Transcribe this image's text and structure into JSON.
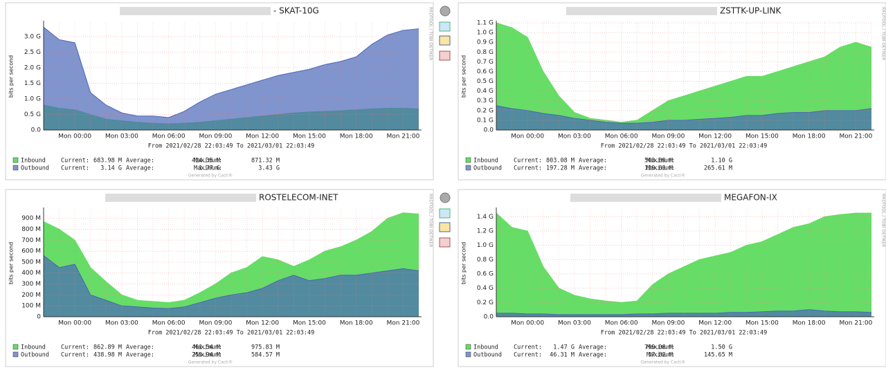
{
  "chart_data": [
    {
      "type": "area",
      "title": "- SKAT-10G",
      "ylabel": "bits per second",
      "xlabel": "From 2021/02/28 22:03:49 To 2021/03/01 22:03:49",
      "side_text": "RRDTOOL / TOBI OETIKER",
      "footer": "Generated by Cacti®",
      "grid": true,
      "categories": [
        null,
        null,
        "Mon 00:00",
        null,
        null,
        "Mon 03:00",
        null,
        null,
        "Mon 06:00",
        null,
        null,
        "Mon 09:00",
        null,
        null,
        "Mon 12:00",
        null,
        null,
        "Mon 15:00",
        null,
        null,
        "Mon 18:00",
        null,
        null,
        "Mon 21:00",
        null
      ],
      "ylim": [
        0,
        3.44
      ],
      "yticks": [
        {
          "value": 0,
          "label": "0.0"
        },
        {
          "value": 0.5,
          "label": "0.5 G"
        },
        {
          "value": 1,
          "label": "1.0 G"
        },
        {
          "value": 1.5,
          "label": "1.5 G"
        },
        {
          "value": 2,
          "label": "2.0 G"
        },
        {
          "value": 2.5,
          "label": "2.5 G"
        },
        {
          "value": 3,
          "label": "3.0 G"
        }
      ],
      "series": [
        {
          "name": "Inbound",
          "color": "#66dd66",
          "opacity": 1,
          "values": [
            0.8,
            0.7,
            0.65,
            0.5,
            0.35,
            0.3,
            0.25,
            0.22,
            0.2,
            0.22,
            0.25,
            0.3,
            0.35,
            0.4,
            0.45,
            0.5,
            0.55,
            0.58,
            0.6,
            0.62,
            0.65,
            0.68,
            0.7,
            0.7,
            0.68
          ],
          "stats": [
            {
              "label": "Current:",
              "value": "683.98 M"
            },
            {
              "label": "Average:",
              "value": "424.35 M"
            },
            {
              "label": "Maximum:",
              "value": "871.32 M"
            }
          ]
        },
        {
          "name": "Outbound",
          "color": "#4a66b8",
          "opacity": 0.7,
          "values": [
            3.3,
            2.9,
            2.8,
            1.2,
            0.8,
            0.55,
            0.45,
            0.45,
            0.4,
            0.6,
            0.9,
            1.15,
            1.3,
            1.45,
            1.6,
            1.75,
            1.85,
            1.95,
            2.1,
            2.2,
            2.35,
            2.75,
            3.05,
            3.2,
            3.25
          ],
          "stats": [
            {
              "label": "Current:",
              "value": "3.14 G"
            },
            {
              "label": "Average:",
              "value": "1.77 G"
            },
            {
              "label": "Maximum:",
              "value": "3.43 G"
            }
          ]
        }
      ]
    },
    {
      "type": "area",
      "title": "ZSTTK-UP-LINK",
      "ylabel": "bits per second",
      "xlabel": "From 2021/02/28 22:03:49 To 2021/03/01 22:03:49",
      "side_text": "RRDTOOL / TOBI OETIKER",
      "footer": "Generated by Cacti®",
      "grid": true,
      "categories": [
        null,
        null,
        "Mon 00:00",
        null,
        null,
        "Mon 03:00",
        null,
        null,
        "Mon 06:00",
        null,
        null,
        "Mon 09:00",
        null,
        null,
        "Mon 12:00",
        null,
        null,
        "Mon 15:00",
        null,
        null,
        "Mon 18:00",
        null,
        null,
        "Mon 21:00",
        null
      ],
      "ylim": [
        0,
        1.1
      ],
      "yticks": [
        {
          "value": 0,
          "label": "0.0"
        },
        {
          "value": 0.1,
          "label": "0.1 G"
        },
        {
          "value": 0.2,
          "label": "0.2 G"
        },
        {
          "value": 0.3,
          "label": "0.3 G"
        },
        {
          "value": 0.4,
          "label": "0.4 G"
        },
        {
          "value": 0.5,
          "label": "0.5 G"
        },
        {
          "value": 0.6,
          "label": "0.6 G"
        },
        {
          "value": 0.7,
          "label": "0.7 G"
        },
        {
          "value": 0.8,
          "label": "0.8 G"
        },
        {
          "value": 0.9,
          "label": "0.9 G"
        },
        {
          "value": 1,
          "label": "1.0 G"
        },
        {
          "value": 1.1,
          "label": "1.1 G"
        }
      ],
      "series": [
        {
          "name": "Inbound",
          "color": "#66dd66",
          "opacity": 1,
          "values": [
            1.1,
            1.05,
            0.95,
            0.6,
            0.35,
            0.18,
            0.12,
            0.1,
            0.08,
            0.1,
            0.2,
            0.3,
            0.35,
            0.4,
            0.45,
            0.5,
            0.55,
            0.55,
            0.6,
            0.65,
            0.7,
            0.75,
            0.85,
            0.9,
            0.85
          ],
          "stats": [
            {
              "label": "Current:",
              "value": "803.08 M"
            },
            {
              "label": "Average:",
              "value": "503.89 M"
            },
            {
              "label": "Maximum:",
              "value": "1.10 G"
            }
          ]
        },
        {
          "name": "Outbound",
          "color": "#4a66b8",
          "opacity": 0.7,
          "values": [
            0.25,
            0.22,
            0.2,
            0.17,
            0.15,
            0.12,
            0.1,
            0.08,
            0.07,
            0.07,
            0.08,
            0.1,
            0.1,
            0.11,
            0.12,
            0.13,
            0.15,
            0.15,
            0.17,
            0.18,
            0.18,
            0.2,
            0.2,
            0.2,
            0.22
          ],
          "stats": [
            {
              "label": "Current:",
              "value": "197.28 M"
            },
            {
              "label": "Average:",
              "value": "129.63 M"
            },
            {
              "label": "Maximum:",
              "value": "265.61 M"
            }
          ]
        }
      ]
    },
    {
      "type": "area",
      "title": "ROSTELECOM-INET",
      "ylabel": "bits per second",
      "xlabel": "From 2021/02/28 22:03:49 To 2021/03/01 22:03:49",
      "side_text": "RRDTOOL / TOBI OETIKER",
      "footer": "Generated by Cacti®",
      "grid": true,
      "categories": [
        null,
        null,
        "Mon 00:00",
        null,
        null,
        "Mon 03:00",
        null,
        null,
        "Mon 06:00",
        null,
        null,
        "Mon 09:00",
        null,
        null,
        "Mon 12:00",
        null,
        null,
        "Mon 15:00",
        null,
        null,
        "Mon 18:00",
        null,
        null,
        "Mon 21:00",
        null
      ],
      "ylim": [
        0,
        980
      ],
      "yticks": [
        0,
        {
          "value": 100,
          "label": "100 M"
        },
        {
          "value": 200,
          "label": "200 M"
        },
        {
          "value": 300,
          "label": "300 M"
        },
        {
          "value": 400,
          "label": "400 M"
        },
        {
          "value": 500,
          "label": "500 M"
        },
        {
          "value": 600,
          "label": "600 M"
        },
        {
          "value": 700,
          "label": "700 M"
        },
        {
          "value": 800,
          "label": "800 M"
        },
        {
          "value": 900,
          "label": "900 M"
        }
      ],
      "series": [
        {
          "name": "Inbound",
          "color": "#66dd66",
          "opacity": 1,
          "values": [
            870,
            800,
            700,
            450,
            320,
            200,
            150,
            140,
            130,
            150,
            220,
            300,
            400,
            450,
            550,
            520,
            460,
            520,
            600,
            640,
            700,
            780,
            900,
            950,
            940
          ],
          "stats": [
            {
              "label": "Current:",
              "value": "862.89 M"
            },
            {
              "label": "Average:",
              "value": "461.54 M"
            },
            {
              "label": "Maximum:",
              "value": "975.83 M"
            }
          ]
        },
        {
          "name": "Outbound",
          "color": "#4a66b8",
          "opacity": 0.7,
          "values": [
            560,
            450,
            480,
            200,
            150,
            100,
            90,
            80,
            75,
            90,
            130,
            170,
            200,
            220,
            260,
            330,
            380,
            330,
            350,
            380,
            380,
            400,
            420,
            440,
            420
          ],
          "stats": [
            {
              "label": "Current:",
              "value": "438.98 M"
            },
            {
              "label": "Average:",
              "value": "255.94 M"
            },
            {
              "label": "Maximum:",
              "value": "584.57 M"
            }
          ]
        }
      ]
    },
    {
      "type": "area",
      "title": "MEGAFON-IX",
      "ylabel": "bits per second",
      "xlabel": "From 2021/02/28 22:03:49 To 2021/03/01 22:03:49",
      "side_text": "RRDTOOL / TOBI OETIKER",
      "footer": "Generated by Cacti®",
      "grid": true,
      "categories": [
        null,
        null,
        "Mon 00:00",
        null,
        null,
        "Mon 03:00",
        null,
        null,
        "Mon 06:00",
        null,
        null,
        "Mon 09:00",
        null,
        null,
        "Mon 12:00",
        null,
        null,
        "Mon 15:00",
        null,
        null,
        "Mon 18:00",
        null,
        null,
        "Mon 21:00",
        null
      ],
      "ylim": [
        0,
        1.5
      ],
      "yticks": [
        {
          "value": 0,
          "label": "0.0"
        },
        {
          "value": 0.2,
          "label": "0.2 G"
        },
        {
          "value": 0.4,
          "label": "0.4 G"
        },
        {
          "value": 0.6,
          "label": "0.6 G"
        },
        {
          "value": 0.8,
          "label": "0.8 G"
        },
        {
          "value": 1,
          "label": "1.0 G"
        },
        {
          "value": 1.2,
          "label": "1.2 G"
        },
        {
          "value": 1.4,
          "label": "1.4 G"
        }
      ],
      "series": [
        {
          "name": "Inbound",
          "color": "#66dd66",
          "opacity": 1,
          "values": [
            1.45,
            1.25,
            1.2,
            0.7,
            0.4,
            0.3,
            0.25,
            0.22,
            0.2,
            0.22,
            0.45,
            0.6,
            0.7,
            0.8,
            0.85,
            0.9,
            1.0,
            1.05,
            1.15,
            1.25,
            1.3,
            1.4,
            1.43,
            1.45,
            1.45
          ],
          "stats": [
            {
              "label": "Current:",
              "value": "1.47 G"
            },
            {
              "label": "Average:",
              "value": "799.08 M"
            },
            {
              "label": "Maximum:",
              "value": "1.50 G"
            }
          ]
        },
        {
          "name": "Outbound",
          "color": "#4a66b8",
          "opacity": 0.7,
          "values": [
            0.05,
            0.05,
            0.04,
            0.04,
            0.03,
            0.03,
            0.03,
            0.03,
            0.03,
            0.04,
            0.04,
            0.05,
            0.05,
            0.05,
            0.05,
            0.06,
            0.06,
            0.07,
            0.08,
            0.08,
            0.1,
            0.08,
            0.07,
            0.07,
            0.06
          ],
          "stats": [
            {
              "label": "Current:",
              "value": "46.31 M"
            },
            {
              "label": "Average:",
              "value": "37.82 M"
            },
            {
              "label": "Maximum:",
              "value": "145.65 M"
            }
          ]
        }
      ]
    }
  ]
}
